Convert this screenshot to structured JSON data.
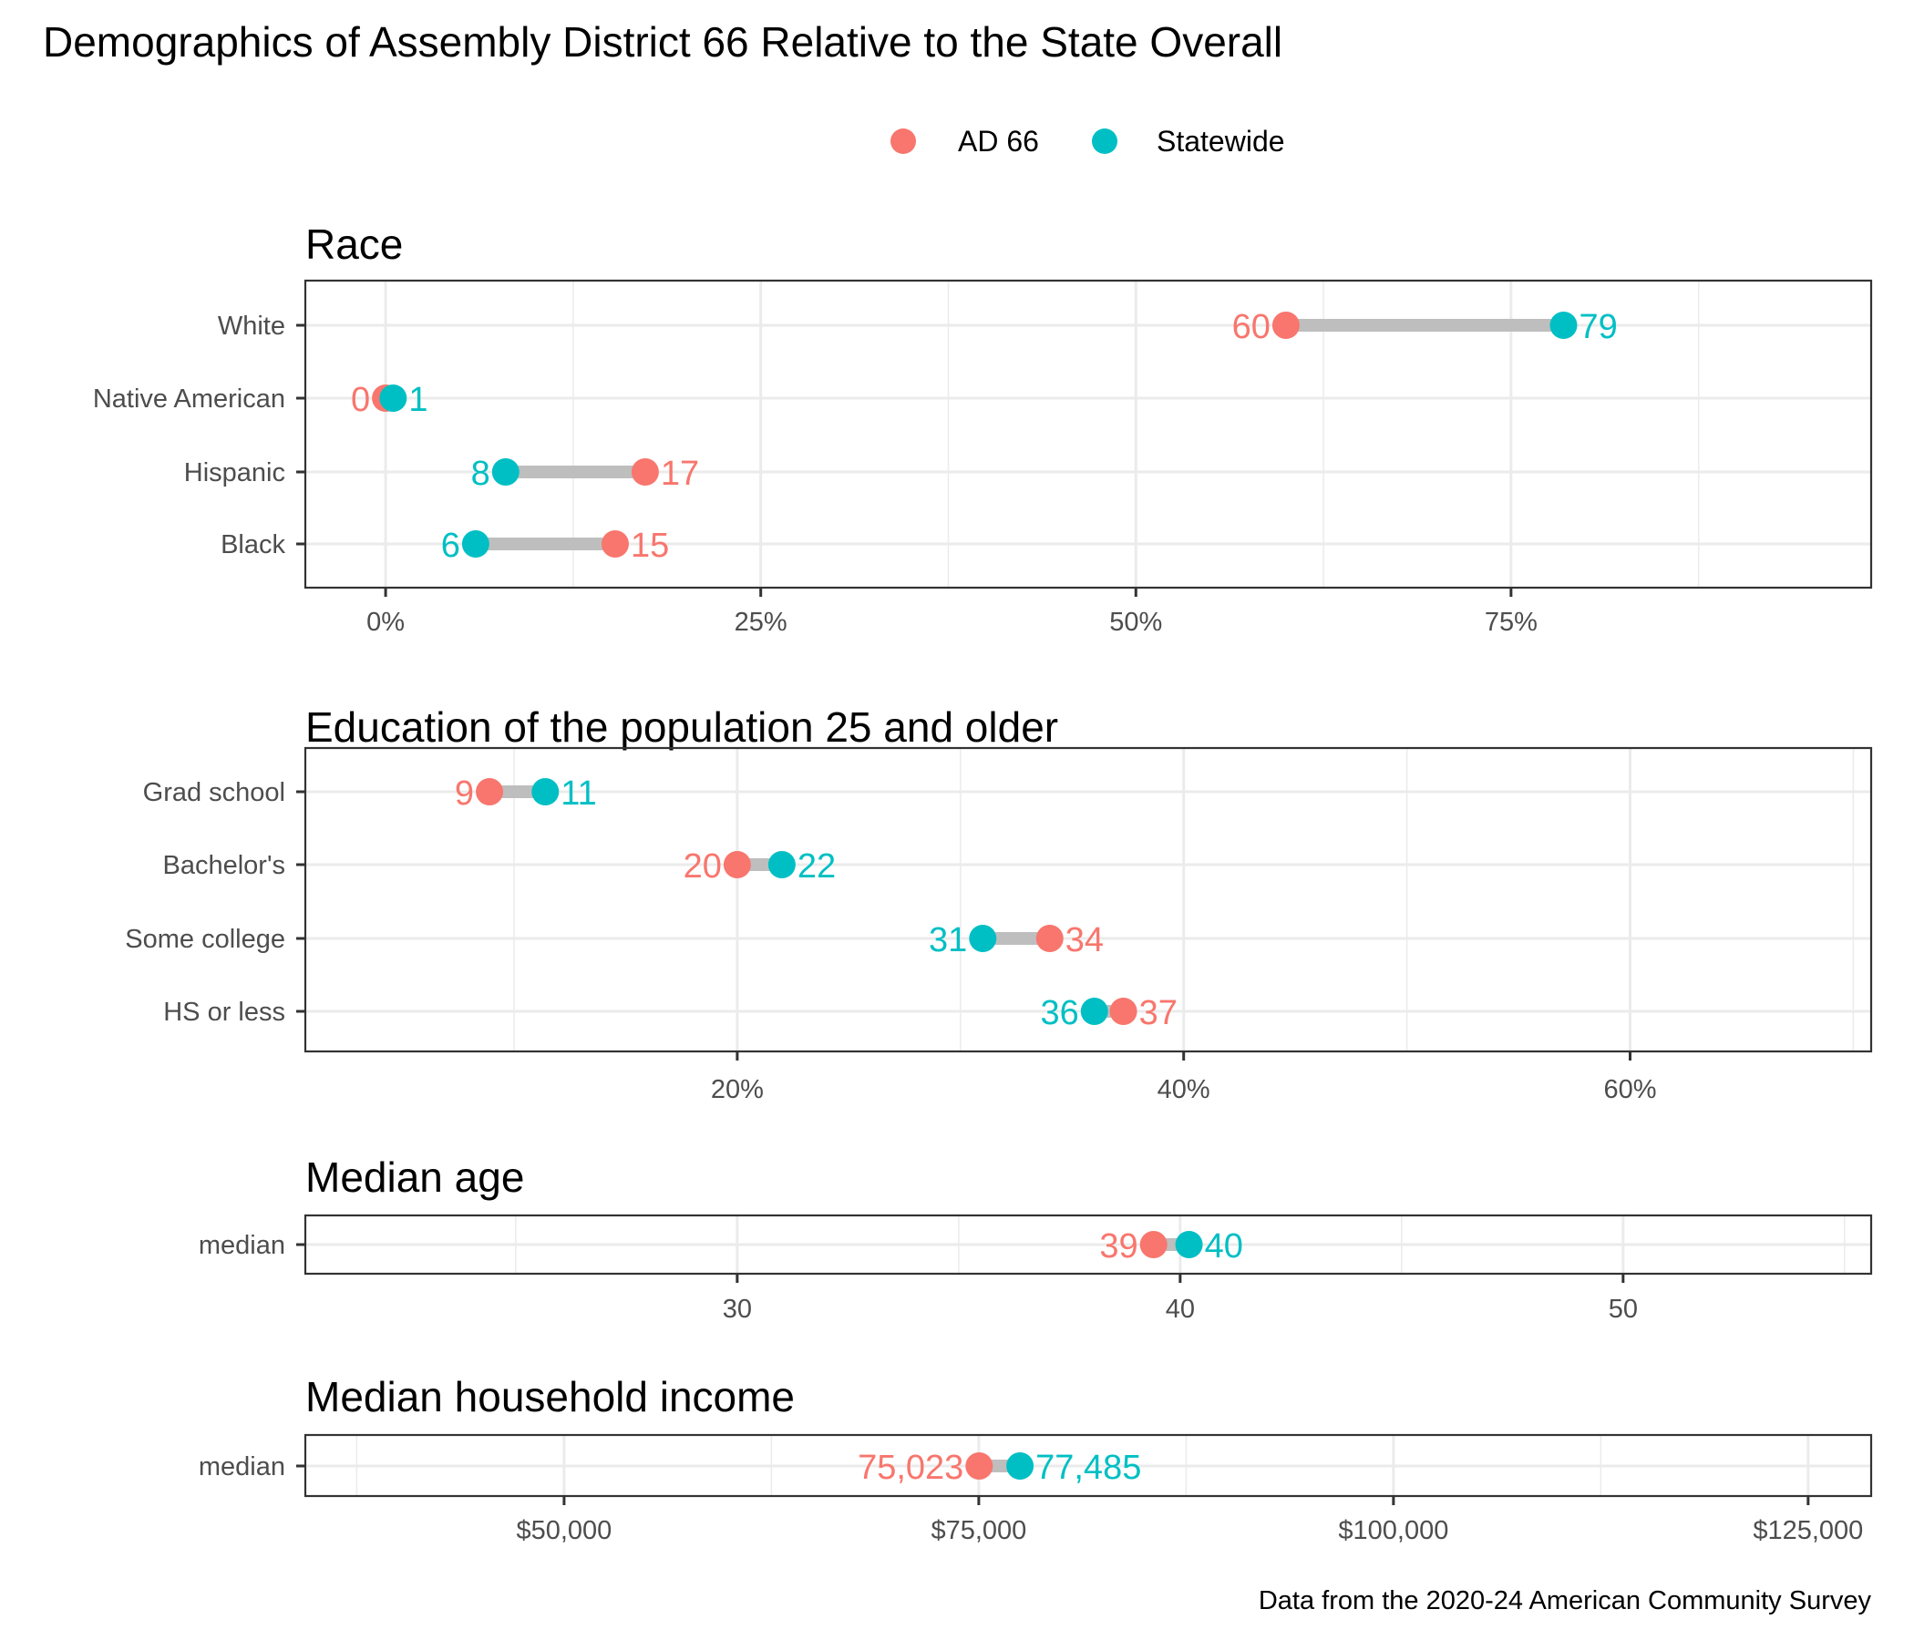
{
  "title": "Demographics of Assembly District 66 Relative to the State Overall",
  "caption": "Data from the 2020-24 American Community Survey",
  "legend": {
    "placement": "top-center",
    "items": [
      {
        "name": "AD 66",
        "color": "#F8766D"
      },
      {
        "name": "Statewide",
        "color": "#00BFC4"
      }
    ]
  },
  "colors": {
    "district": "#F8766D",
    "statewide": "#00BFC4",
    "segment": "#BEBEBE"
  },
  "chart_data": [
    {
      "type": "dumbbell",
      "title": "Race",
      "xlabel": "",
      "ylabel": "",
      "xlim": [
        -5.35,
        99
      ],
      "grid": true,
      "x_ticks": [
        0,
        25,
        50,
        75
      ],
      "x_tick_labels": [
        "0%",
        "25%",
        "50%",
        "75%"
      ],
      "x_minor": [
        12.5,
        37.5,
        62.5,
        87.5
      ],
      "categories": [
        "White",
        "Native American",
        "Hispanic",
        "Black"
      ],
      "series": [
        {
          "name": "AD 66",
          "values": [
            60,
            0,
            17.3,
            15.3
          ],
          "labels": [
            "60",
            "0",
            "17",
            "15"
          ]
        },
        {
          "name": "Statewide",
          "values": [
            78.5,
            0.5,
            8,
            6
          ],
          "labels": [
            "79",
            "1",
            "8",
            "6"
          ]
        }
      ]
    },
    {
      "type": "dumbbell",
      "title": "Education of the population 25 and older",
      "xlabel": "",
      "ylabel": "",
      "xlim": [
        0.65,
        70.8
      ],
      "grid": true,
      "x_ticks": [
        20,
        40,
        60
      ],
      "x_tick_labels": [
        "20%",
        "40%",
        "60%"
      ],
      "x_minor": [
        10,
        30,
        50,
        70
      ],
      "categories": [
        "Grad school",
        "Bachelor's",
        "Some college",
        "HS or less"
      ],
      "series": [
        {
          "name": "AD 66",
          "values": [
            8.9,
            20,
            34,
            37.3
          ],
          "labels": [
            "9",
            "20",
            "34",
            "37"
          ]
        },
        {
          "name": "Statewide",
          "values": [
            11.4,
            22,
            31,
            36
          ],
          "labels": [
            "11",
            "22",
            "31",
            "36"
          ]
        }
      ]
    },
    {
      "type": "dumbbell",
      "title": "Median age",
      "xlabel": "",
      "ylabel": "",
      "xlim": [
        20.25,
        55.6
      ],
      "grid": true,
      "x_ticks": [
        30,
        40,
        50
      ],
      "x_tick_labels": [
        "30",
        "40",
        "50"
      ],
      "x_minor": [
        25,
        35,
        45,
        55
      ],
      "categories": [
        "median"
      ],
      "series": [
        {
          "name": "AD 66",
          "values": [
            39.4
          ],
          "labels": [
            "39"
          ]
        },
        {
          "name": "Statewide",
          "values": [
            40.2
          ],
          "labels": [
            "40"
          ]
        }
      ]
    },
    {
      "type": "dumbbell",
      "title": "Median household income",
      "xlabel": "",
      "ylabel": "",
      "xlim": [
        34400,
        128800
      ],
      "grid": true,
      "x_ticks": [
        50000,
        75000,
        100000,
        125000
      ],
      "x_tick_labels": [
        "$50,000",
        "$75,000",
        "$100,000",
        "$125,000"
      ],
      "x_minor": [
        37500,
        62500,
        87500,
        112500
      ],
      "categories": [
        "median"
      ],
      "series": [
        {
          "name": "AD 66",
          "values": [
            75023
          ],
          "labels": [
            "75,023"
          ]
        },
        {
          "name": "Statewide",
          "values": [
            77485
          ],
          "labels": [
            "77,485"
          ]
        }
      ]
    }
  ]
}
